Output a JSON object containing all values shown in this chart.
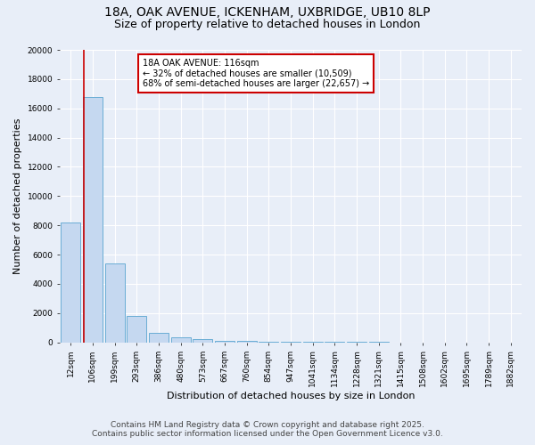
{
  "title_line1": "18A, OAK AVENUE, ICKENHAM, UXBRIDGE, UB10 8LP",
  "title_line2": "Size of property relative to detached houses in London",
  "xlabel": "Distribution of detached houses by size in London",
  "ylabel": "Number of detached properties",
  "bar_labels": [
    "12sqm",
    "106sqm",
    "199sqm",
    "293sqm",
    "386sqm",
    "480sqm",
    "573sqm",
    "667sqm",
    "760sqm",
    "854sqm",
    "947sqm",
    "1041sqm",
    "1134sqm",
    "1228sqm",
    "1321sqm",
    "1415sqm",
    "1508sqm",
    "1602sqm",
    "1695sqm",
    "1789sqm",
    "1882sqm"
  ],
  "bar_values": [
    8200,
    16800,
    5400,
    1800,
    650,
    350,
    250,
    130,
    80,
    50,
    40,
    30,
    20,
    15,
    12,
    10,
    8,
    7,
    6,
    5,
    4
  ],
  "bar_color": "#c5d8f0",
  "bar_edge_color": "#6aadd5",
  "annotation_text": "18A OAK AVENUE: 116sqm\n← 32% of detached houses are smaller (10,509)\n68% of semi-detached houses are larger (22,657) →",
  "annotation_box_color": "#ffffff",
  "annotation_border_color": "#cc0000",
  "red_line_color": "#cc0000",
  "ylim": [
    0,
    20000
  ],
  "yticks": [
    0,
    2000,
    4000,
    6000,
    8000,
    10000,
    12000,
    14000,
    16000,
    18000,
    20000
  ],
  "footer_line1": "Contains HM Land Registry data © Crown copyright and database right 2025.",
  "footer_line2": "Contains public sector information licensed under the Open Government Licence v3.0.",
  "background_color": "#e8eef8",
  "plot_bg_color": "#e8eef8",
  "grid_color": "#ffffff",
  "title_fontsize": 10,
  "subtitle_fontsize": 9,
  "axis_label_fontsize": 8,
  "tick_fontsize": 6.5,
  "annotation_fontsize": 7,
  "footer_fontsize": 6.5
}
